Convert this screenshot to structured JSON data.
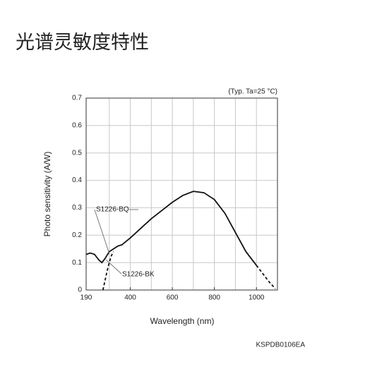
{
  "page_title": "光谱灵敏度特性",
  "chart_data": {
    "type": "line",
    "note": "(Typ. Ta=25 °C)",
    "x_label": "Wavelength (nm)",
    "y_label": "Photo sensitivity (A/W)",
    "code": "KSPDB0106EA",
    "xlim": [
      190,
      1100
    ],
    "ylim": [
      0,
      0.7
    ],
    "xticks": [
      190,
      400,
      600,
      800,
      1000
    ],
    "yticks": [
      0,
      0.1,
      0.2,
      0.3,
      0.4,
      0.5,
      0.6,
      0.7
    ],
    "xgrid": [
      300,
      400,
      500,
      600,
      700,
      800,
      900,
      1000
    ],
    "grid": true,
    "series": [
      {
        "name": "S1226-BQ",
        "color": "#111111",
        "x": [
          190,
          210,
          230,
          250,
          265,
          280,
          300,
          320,
          340,
          360,
          400,
          450,
          500,
          550,
          600,
          650,
          700,
          750,
          800,
          850,
          900,
          950,
          1000
        ],
        "values": [
          0.13,
          0.135,
          0.13,
          0.11,
          0.1,
          0.115,
          0.14,
          0.15,
          0.16,
          0.165,
          0.19,
          0.225,
          0.26,
          0.29,
          0.32,
          0.345,
          0.36,
          0.355,
          0.33,
          0.28,
          0.21,
          0.14,
          0.09
        ]
      },
      {
        "name": "S1226-BK",
        "color": "#111111",
        "dashed": true,
        "x": [
          270,
          280,
          290,
          300,
          310,
          320
        ],
        "values": [
          0,
          0.035,
          0.07,
          0.1,
          0.125,
          0.14
        ]
      },
      {
        "color": "#111111",
        "dashed": true,
        "x": [
          1000,
          1030,
          1060,
          1090
        ],
        "values": [
          0.09,
          0.06,
          0.03,
          0.005
        ]
      }
    ]
  }
}
